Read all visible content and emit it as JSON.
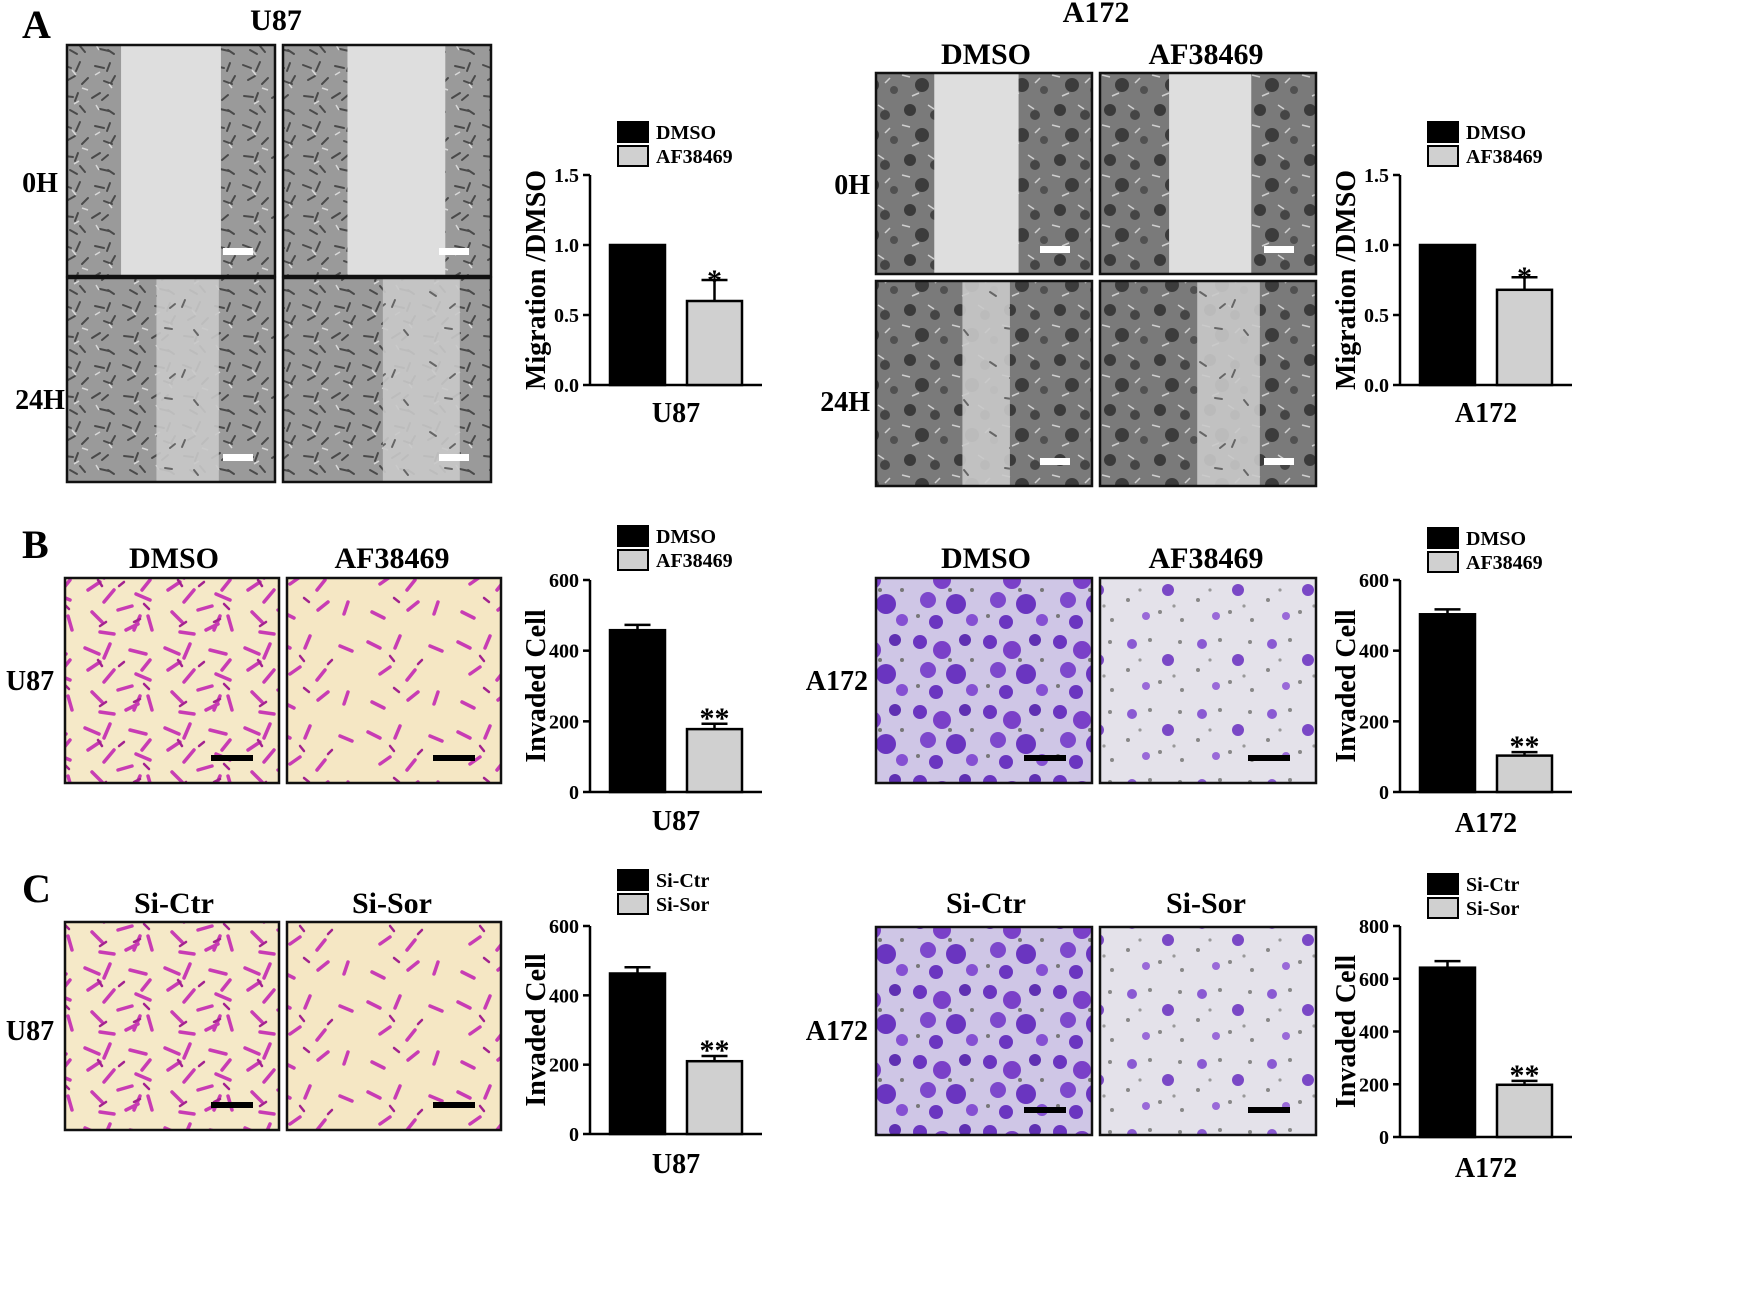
{
  "panels": [
    {
      "letter": "A",
      "type": "migration",
      "blocks": [
        {
          "cell_line": "U87",
          "columns": [
            "DMSO",
            "AF38469"
          ],
          "rows": [
            "0H",
            "24H"
          ]
        },
        {
          "cell_line": "A172",
          "columns": [
            "DMSO",
            "AF38469"
          ],
          "rows": [
            "0H",
            "24H"
          ]
        }
      ]
    },
    {
      "letter": "B",
      "type": "invasion",
      "blocks": [
        {
          "cell_line": "U87",
          "columns": [
            "DMSO",
            "AF38469"
          ],
          "stain": "#c83cb4"
        },
        {
          "cell_line": "A172",
          "columns": [
            "DMSO",
            "AF38469"
          ],
          "stain": "#7a40c8"
        }
      ]
    },
    {
      "letter": "C",
      "type": "invasion",
      "blocks": [
        {
          "cell_line": "U87",
          "columns": [
            "Si-Ctr",
            "Si-Sor"
          ],
          "stain": "#c83cb4"
        },
        {
          "cell_line": "A172",
          "columns": [
            "Si-Ctr",
            "Si-Sor"
          ],
          "stain": "#7a40c8"
        }
      ]
    }
  ],
  "chart_data": [
    {
      "type": "bar",
      "panel": "A",
      "ylabel": "Migration /DMSO",
      "xlabel": "U87",
      "ylim": [
        0,
        1.5
      ],
      "yticks": [
        "0.0",
        "0.5",
        "1.0",
        "1.5"
      ],
      "legend": [
        "DMSO",
        "AF38469"
      ],
      "values": [
        1.0,
        0.6
      ],
      "errors": [
        0,
        0.15
      ],
      "significance": [
        "",
        "*"
      ],
      "colors": [
        "#000000",
        "#d0d0d0"
      ]
    },
    {
      "type": "bar",
      "panel": "A",
      "ylabel": "Migration /DMSO",
      "xlabel": "A172",
      "ylim": [
        0,
        1.5
      ],
      "yticks": [
        "0.0",
        "0.5",
        "1.0",
        "1.5"
      ],
      "legend": [
        "DMSO",
        "AF38469"
      ],
      "values": [
        1.0,
        0.68
      ],
      "errors": [
        0,
        0.09
      ],
      "significance": [
        "",
        "*"
      ],
      "colors": [
        "#000000",
        "#d0d0d0"
      ]
    },
    {
      "type": "bar",
      "panel": "B",
      "ylabel": "Invaded Cell",
      "xlabel": "U87",
      "ylim": [
        0,
        600
      ],
      "yticks": [
        "0",
        "200",
        "400",
        "600"
      ],
      "legend": [
        "DMSO",
        "AF38469"
      ],
      "values": [
        458,
        178
      ],
      "errors": [
        15,
        15
      ],
      "significance": [
        "",
        "**"
      ],
      "colors": [
        "#000000",
        "#d0d0d0"
      ]
    },
    {
      "type": "bar",
      "panel": "B",
      "ylabel": "Invaded Cell",
      "xlabel": "A172",
      "ylim": [
        0,
        600
      ],
      "yticks": [
        "0",
        "200",
        "400",
        "600"
      ],
      "legend": [
        "DMSO",
        "AF38469"
      ],
      "values": [
        503,
        103
      ],
      "errors": [
        14,
        10
      ],
      "significance": [
        "",
        "**"
      ],
      "colors": [
        "#000000",
        "#d0d0d0"
      ]
    },
    {
      "type": "bar",
      "panel": "C",
      "ylabel": "Invaded Cell",
      "xlabel": "U87",
      "ylim": [
        0,
        600
      ],
      "yticks": [
        "0",
        "200",
        "400",
        "600"
      ],
      "legend": [
        "Si-Ctr",
        "Si-Sor"
      ],
      "values": [
        463,
        210
      ],
      "errors": [
        18,
        15
      ],
      "significance": [
        "",
        "**"
      ],
      "colors": [
        "#000000",
        "#d0d0d0"
      ]
    },
    {
      "type": "bar",
      "panel": "C",
      "ylabel": "Invaded Cell",
      "xlabel": "A172",
      "ylim": [
        0,
        800
      ],
      "yticks": [
        "0",
        "200",
        "400",
        "600",
        "800"
      ],
      "legend": [
        "Si-Ctr",
        "Si-Sor"
      ],
      "values": [
        642,
        198
      ],
      "errors": [
        25,
        15
      ],
      "significance": [
        "",
        "**"
      ],
      "colors": [
        "#000000",
        "#d0d0d0"
      ]
    }
  ]
}
